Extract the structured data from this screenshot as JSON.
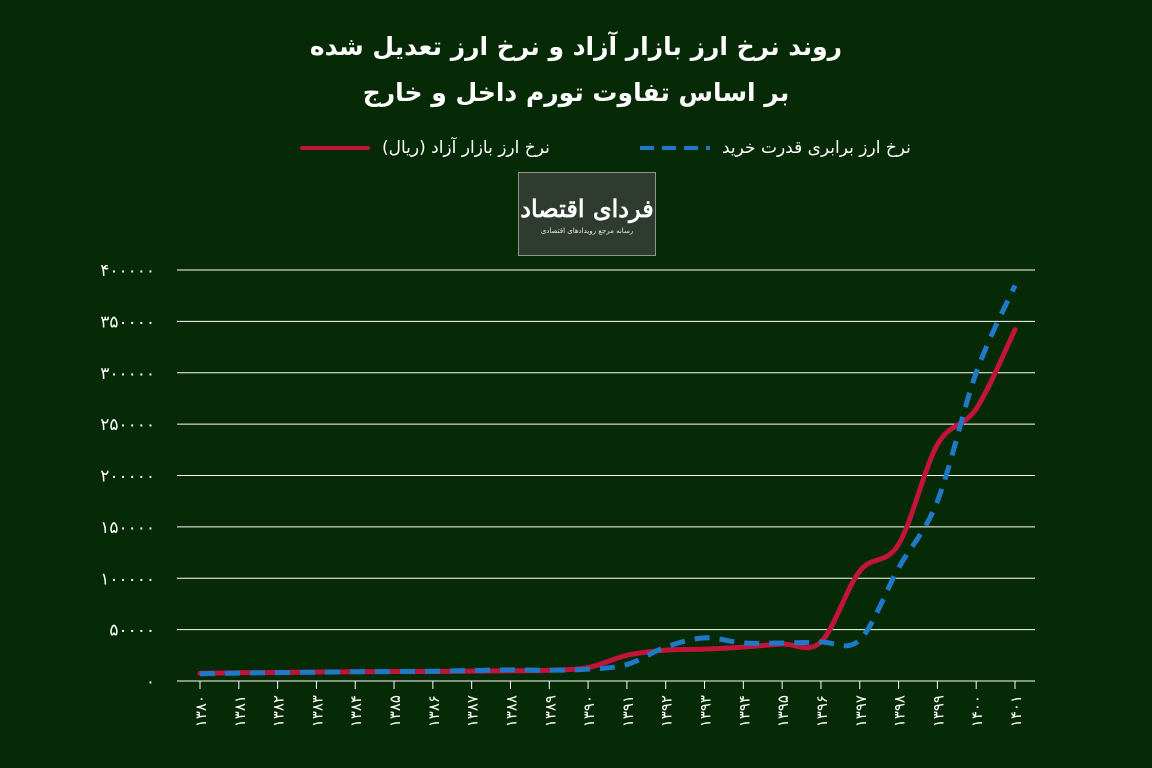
{
  "title_line1": "روند نرخ ارز بازار آزاد و نرخ ارز تعدیل شده",
  "title_line2": "بر اساس تفاوت تورم داخل و خارج",
  "logo": {
    "name": "فردای اقتصاد",
    "tagline": "رسانه مرجع رویدادهای اقتصادی"
  },
  "colors": {
    "background": "#052a05",
    "market_series": "#c0143c",
    "ppp_series": "#1f78c8",
    "grid": "#ffffff",
    "text": "#ffffff"
  },
  "chart_data": {
    "type": "line",
    "title": "روند نرخ ارز بازار آزاد و نرخ ارز تعدیل شده بر اساس تفاوت تورم داخل و خارج",
    "xlabel": "",
    "ylabel": "",
    "categories": [
      "۱۳۸۰",
      "۱۳۸۱",
      "۱۳۸۲",
      "۱۳۸۳",
      "۱۳۸۴",
      "۱۳۸۵",
      "۱۳۸۶",
      "۱۳۸۷",
      "۱۳۸۸",
      "۱۳۸۹",
      "۱۳۹۰",
      "۱۳۹۱",
      "۱۳۹۲",
      "۱۳۹۳",
      "۱۳۹۴",
      "۱۳۹۵",
      "۱۳۹۶",
      "۱۳۹۷",
      "۱۳۹۸",
      "۱۳۹۹",
      "۱۴۰۰",
      "۱۴۰۱"
    ],
    "y_ticks": [
      "۰",
      "۵۰۰۰۰",
      "۱۰۰۰۰۰",
      "۱۵۰۰۰۰",
      "۲۰۰۰۰۰",
      "۲۵۰۰۰۰",
      "۳۰۰۰۰۰",
      "۳۵۰۰۰۰",
      "۴۰۰۰۰۰"
    ],
    "ylim": [
      0,
      400000
    ],
    "grid": true,
    "legend_position": "top",
    "series": [
      {
        "name": "نرخ ارز بازار آزاد (ریال)",
        "style": "solid",
        "values": [
          7500,
          8000,
          8300,
          8700,
          9000,
          9200,
          9300,
          9600,
          9900,
          10500,
          13000,
          25000,
          30000,
          31000,
          33000,
          36000,
          38000,
          107000,
          133000,
          230000,
          265000,
          342000
        ]
      },
      {
        "name": "نرخ ارز برابری قدرت خرید",
        "style": "dashed",
        "values": [
          7000,
          7700,
          8200,
          8500,
          9000,
          9200,
          9500,
          10200,
          10800,
          10500,
          11500,
          16000,
          33000,
          42000,
          37000,
          37000,
          38000,
          40000,
          110000,
          175000,
          300000,
          385000
        ]
      }
    ]
  }
}
